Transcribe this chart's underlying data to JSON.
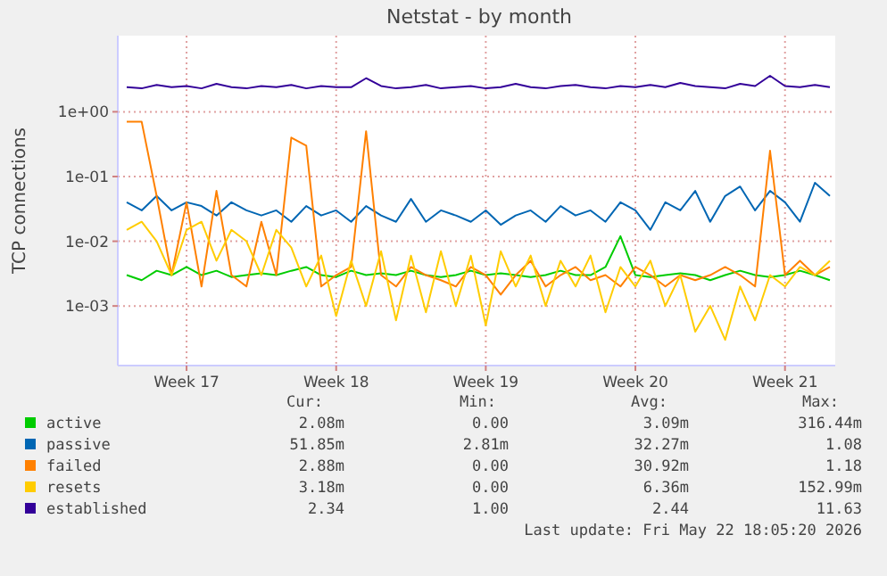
{
  "chart_data": {
    "type": "line",
    "title": "Netstat - by month",
    "ylabel": "TCP connections",
    "log": "y",
    "grid": true,
    "legend": "bottom",
    "marker": "none",
    "line_style": "solid",
    "categories": [
      null,
      null,
      null,
      null,
      "Week 17",
      null,
      null,
      null,
      null,
      null,
      null,
      null,
      null,
      null,
      "Week 18",
      null,
      null,
      null,
      null,
      null,
      null,
      null,
      null,
      null,
      "Week 19",
      null,
      null,
      null,
      null,
      null,
      null,
      null,
      null,
      null,
      "Week 20",
      null,
      null,
      null,
      null,
      null,
      null,
      null,
      null,
      null,
      "Week 21",
      null,
      null,
      null
    ],
    "ylim": [
      0.00012,
      15
    ],
    "yticks": [
      {
        "value": 0.001,
        "label": "1e-03"
      },
      {
        "value": 0.01,
        "label": "1e-02"
      },
      {
        "value": 0.1,
        "label": "1e-01"
      },
      {
        "value": 1,
        "label": "1e+00"
      }
    ],
    "series": [
      {
        "name": "active",
        "color": "#00cc00",
        "values": [
          0.003,
          0.0025,
          0.0035,
          0.003,
          0.004,
          0.003,
          0.0035,
          0.0028,
          0.003,
          0.0032,
          0.003,
          0.0035,
          0.004,
          0.003,
          0.0028,
          0.0035,
          0.003,
          0.0032,
          0.003,
          0.0035,
          0.003,
          0.0028,
          0.003,
          0.0035,
          0.003,
          0.0032,
          0.003,
          0.0028,
          0.003,
          0.0035,
          0.003,
          0.003,
          0.004,
          0.012,
          0.003,
          0.0028,
          0.003,
          0.0032,
          0.003,
          0.0025,
          0.003,
          0.0035,
          0.003,
          0.0028,
          0.003,
          0.0035,
          0.003,
          0.0025
        ]
      },
      {
        "name": "passive",
        "color": "#0066b3",
        "values": [
          0.04,
          0.03,
          0.05,
          0.03,
          0.04,
          0.035,
          0.025,
          0.04,
          0.03,
          0.025,
          0.03,
          0.02,
          0.035,
          0.025,
          0.03,
          0.02,
          0.035,
          0.025,
          0.02,
          0.045,
          0.02,
          0.03,
          0.025,
          0.02,
          0.03,
          0.018,
          0.025,
          0.03,
          0.02,
          0.035,
          0.025,
          0.03,
          0.02,
          0.04,
          0.03,
          0.015,
          0.04,
          0.03,
          0.06,
          0.02,
          0.05,
          0.07,
          0.03,
          0.06,
          0.04,
          0.02,
          0.08,
          0.05
        ]
      },
      {
        "name": "failed",
        "color": "#ff8000",
        "values": [
          0.7,
          0.7,
          0.05,
          0.003,
          0.04,
          0.002,
          0.06,
          0.003,
          0.002,
          0.02,
          0.003,
          0.4,
          0.3,
          0.002,
          0.003,
          0.004,
          0.5,
          0.003,
          0.002,
          0.004,
          0.003,
          0.0025,
          0.002,
          0.004,
          0.003,
          0.0015,
          0.003,
          0.005,
          0.002,
          0.003,
          0.004,
          0.0025,
          0.003,
          0.002,
          0.004,
          0.003,
          0.002,
          0.003,
          0.0025,
          0.003,
          0.004,
          0.003,
          0.002,
          0.25,
          0.003,
          0.005,
          0.003,
          0.004
        ]
      },
      {
        "name": "resets",
        "color": "#ffcc00",
        "values": [
          0.015,
          0.02,
          0.01,
          0.003,
          0.015,
          0.02,
          0.005,
          0.015,
          0.01,
          0.003,
          0.015,
          0.008,
          0.002,
          0.006,
          0.0007,
          0.005,
          0.001,
          0.007,
          0.0006,
          0.006,
          0.0008,
          0.007,
          0.001,
          0.006,
          0.0005,
          0.007,
          0.002,
          0.006,
          0.001,
          0.005,
          0.002,
          0.006,
          0.0008,
          0.004,
          0.002,
          0.005,
          0.001,
          0.003,
          0.0004,
          0.001,
          0.0003,
          0.002,
          0.0006,
          0.003,
          0.002,
          0.004,
          0.003,
          0.005
        ]
      },
      {
        "name": "established",
        "color": "#330099",
        "values": [
          2.4,
          2.3,
          2.6,
          2.4,
          2.5,
          2.3,
          2.7,
          2.4,
          2.3,
          2.5,
          2.4,
          2.6,
          2.3,
          2.5,
          2.4,
          2.4,
          3.3,
          2.5,
          2.3,
          2.4,
          2.6,
          2.3,
          2.4,
          2.5,
          2.3,
          2.4,
          2.7,
          2.4,
          2.3,
          2.5,
          2.6,
          2.4,
          2.3,
          2.5,
          2.4,
          2.6,
          2.4,
          2.8,
          2.5,
          2.4,
          2.3,
          2.7,
          2.5,
          3.6,
          2.5,
          2.4,
          2.6,
          2.4
        ]
      }
    ],
    "annotations": [
      "Cur:",
      "Min:",
      "Avg:",
      "Max:",
      "2.08m",
      "0.00",
      "3.09m",
      "316.44m",
      "51.85m",
      "2.81m",
      "32.27m",
      "1.08",
      "2.88m",
      "0.00",
      "30.92m",
      "1.18",
      "3.18m",
      "0.00",
      "6.36m",
      "152.99m",
      "2.34",
      "1.00",
      "2.44",
      "11.63",
      "Last update: Fri May 22 18:05:20 2026"
    ]
  }
}
